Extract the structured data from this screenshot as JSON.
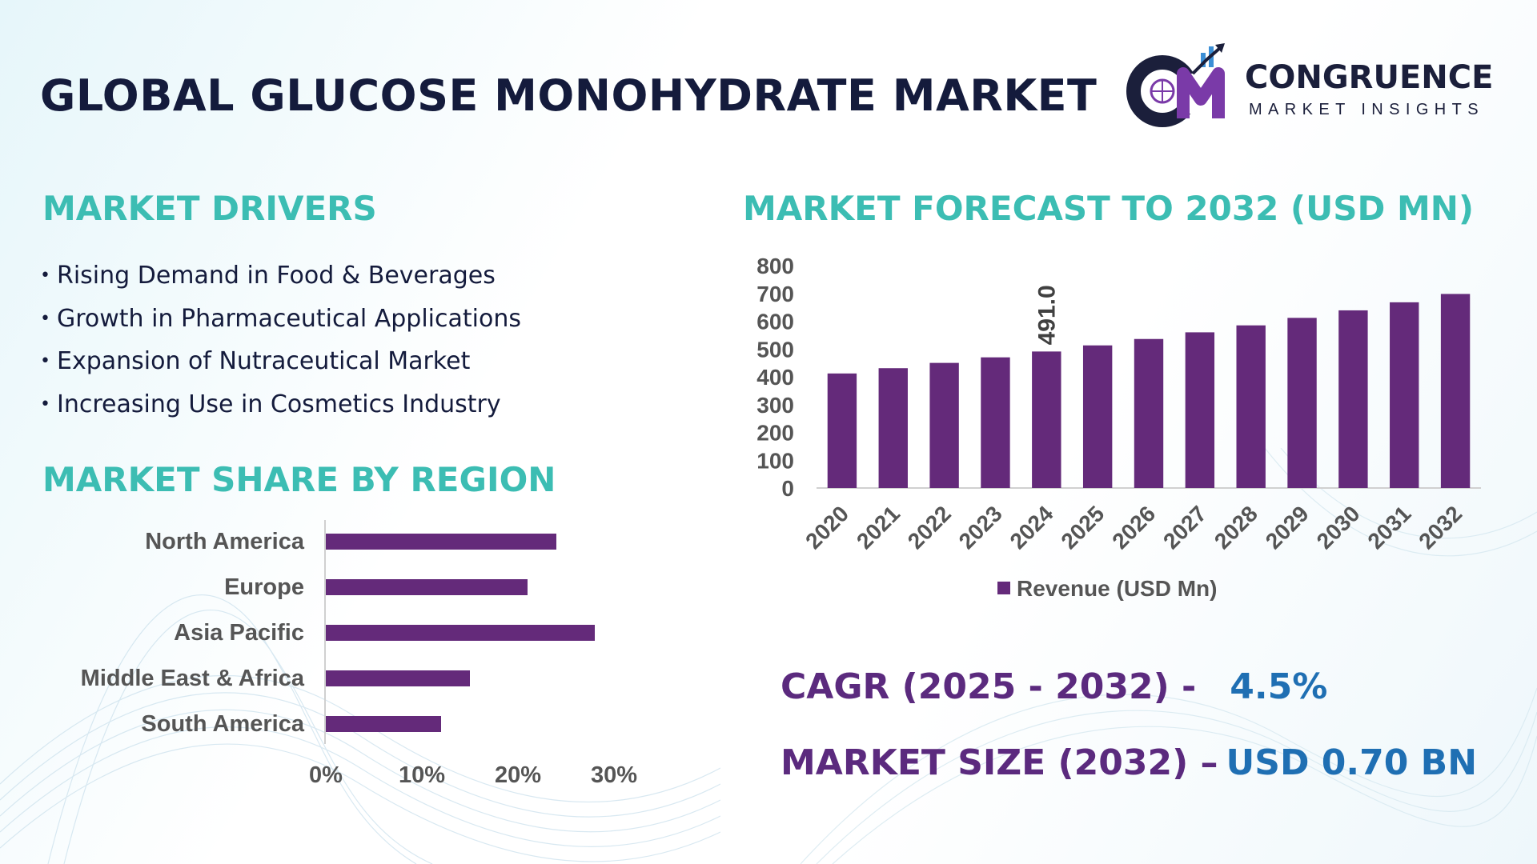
{
  "header": {
    "title": "GLOBAL GLUCOSE MONOHYDRATE MARKET"
  },
  "logo": {
    "monogram": "CM",
    "name": "CONGRUENCE",
    "tagline": "MARKET INSIGHTS"
  },
  "drivers": {
    "heading": "MARKET DRIVERS",
    "bullet": "•",
    "items": [
      "Rising Demand in Food & Beverages",
      "Growth in Pharmaceutical Applications",
      "Expansion of Nutraceutical Market",
      "Increasing Use in Cosmetics Industry"
    ]
  },
  "region": {
    "heading": "MARKET SHARE BY REGION"
  },
  "forecast": {
    "heading": "MARKET FORECAST TO 2032 (USD MN)"
  },
  "kpis": {
    "cagr_label": "CAGR (2025 - 2032) -",
    "cagr_value": "4.5%",
    "size_label": "MARKET SIZE (2032) –",
    "size_value": "USD 0.70 BN"
  },
  "colors": {
    "title": "#141b3c",
    "teal_heading": "#3cbdb3",
    "bar_purple": "#642a7a",
    "kpi_purple": "#5b2a7e",
    "kpi_blue": "#1f6fb3",
    "axis_text": "#555555"
  },
  "chart_data": [
    {
      "type": "bar",
      "orientation": "horizontal",
      "title": "MARKET SHARE BY REGION",
      "categories": [
        "North America",
        "Europe",
        "Asia Pacific",
        "Middle East & Africa",
        "South America"
      ],
      "values": [
        24,
        21,
        28,
        15,
        12
      ],
      "value_unit": "%",
      "xlim": [
        0,
        30
      ],
      "xticks": [
        "0%",
        "10%",
        "20%",
        "30%"
      ],
      "grid": false,
      "legend": "none"
    },
    {
      "type": "bar",
      "orientation": "vertical",
      "title": "MARKET FORECAST TO 2032 (USD MN)",
      "categories": [
        "2020",
        "2021",
        "2022",
        "2023",
        "2024",
        "2025",
        "2026",
        "2027",
        "2028",
        "2029",
        "2030",
        "2031",
        "2032"
      ],
      "series": [
        {
          "name": "Revenue (USD Mn)",
          "values": [
            412,
            431,
            450,
            470,
            491.0,
            513,
            536,
            560,
            585,
            612,
            639,
            668,
            698
          ]
        }
      ],
      "data_labels": [
        {
          "category": "2024",
          "text": "491.0"
        }
      ],
      "ylim": [
        0,
        800
      ],
      "yticks": [
        "0",
        "100",
        "200",
        "300",
        "400",
        "500",
        "600",
        "700",
        "800"
      ],
      "grid": false,
      "legend": "bottom-center"
    }
  ]
}
